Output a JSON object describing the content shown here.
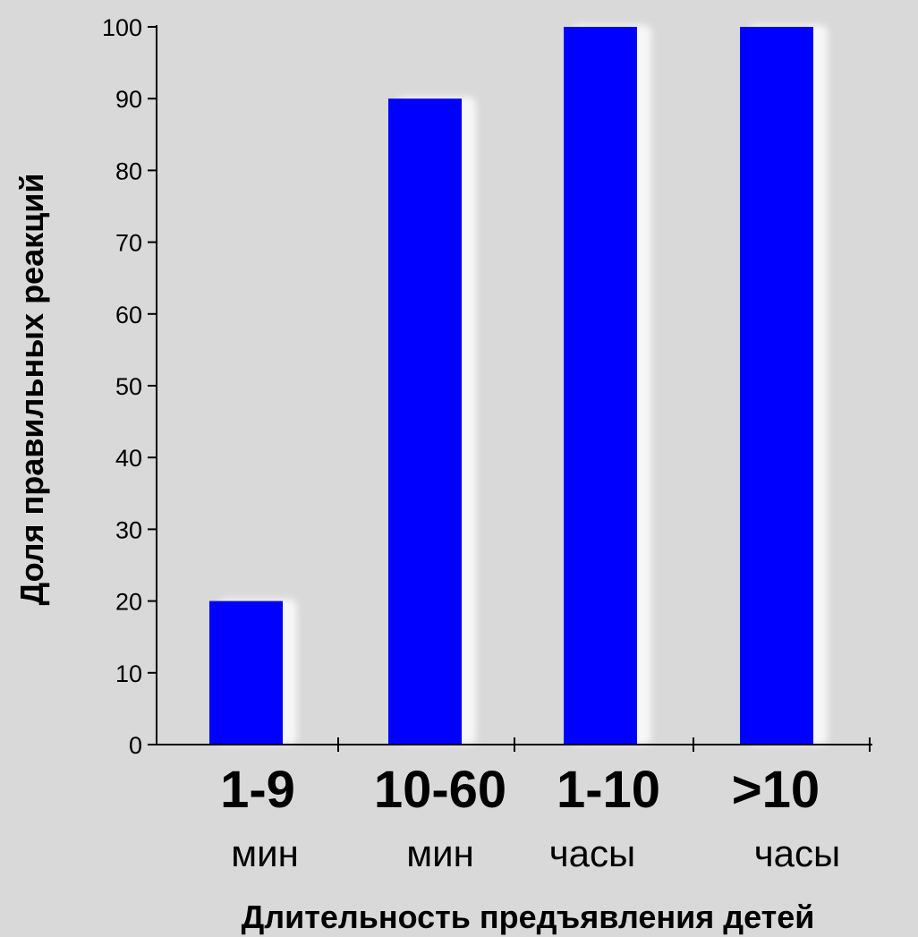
{
  "colors": {
    "background": "#d9d9d9",
    "bar": "#0000ff",
    "bar_shadow": "#f7f7f7",
    "axis": "#000000"
  },
  "chart_data": {
    "type": "bar",
    "categories": [
      {
        "main": "1-9",
        "sub": "мин"
      },
      {
        "main": "10-60",
        "sub": "мин"
      },
      {
        "main": "1-10",
        "sub": "часы"
      },
      {
        "main": ">10",
        "sub": "часы"
      }
    ],
    "values": [
      20,
      90,
      100,
      100
    ],
    "title": "",
    "xlabel": "Длительность предъявления детей",
    "ylabel": "Доля правильных реакций",
    "ylim": [
      0,
      100
    ],
    "yticks": [
      0,
      10,
      20,
      30,
      40,
      50,
      60,
      70,
      80,
      90,
      100
    ],
    "grid": false,
    "legend": "none"
  }
}
